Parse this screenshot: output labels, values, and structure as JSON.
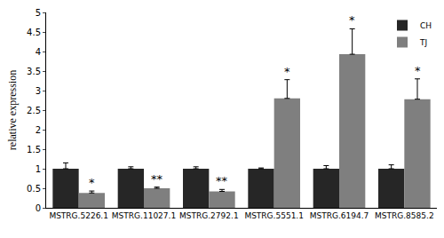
{
  "chart_data": {
    "type": "bar",
    "y_label": "relative expression",
    "categories": [
      "MSTRG.5226.1",
      "MSTRG.11027.1",
      "MSTRG.2792.1",
      "MSTRG.5551.1",
      "MSTRG.6194.7",
      "MSTRG.8585.2"
    ],
    "series": [
      {
        "name": "CH",
        "color": "#262626",
        "values": [
          1,
          1,
          1,
          1,
          1,
          1
        ],
        "error": [
          0.15,
          0.05,
          0.05,
          0.02,
          0.08,
          0.1
        ]
      },
      {
        "name": "TJ",
        "color": "#7f7f7f",
        "values": [
          0.38,
          0.5,
          0.42,
          2.8,
          3.93,
          2.78
        ],
        "error": [
          0.05,
          0.03,
          0.05,
          0.48,
          0.65,
          0.52
        ],
        "labels": [
          "*",
          "**",
          "**",
          "*",
          "*",
          "*"
        ]
      }
    ],
    "ylim": [
      0,
      5
    ],
    "yticks": [
      0,
      0.5,
      1,
      1.5,
      2,
      2.5,
      3,
      3.5,
      4,
      4.5,
      5
    ],
    "grid": false,
    "legend": "top-right"
  }
}
